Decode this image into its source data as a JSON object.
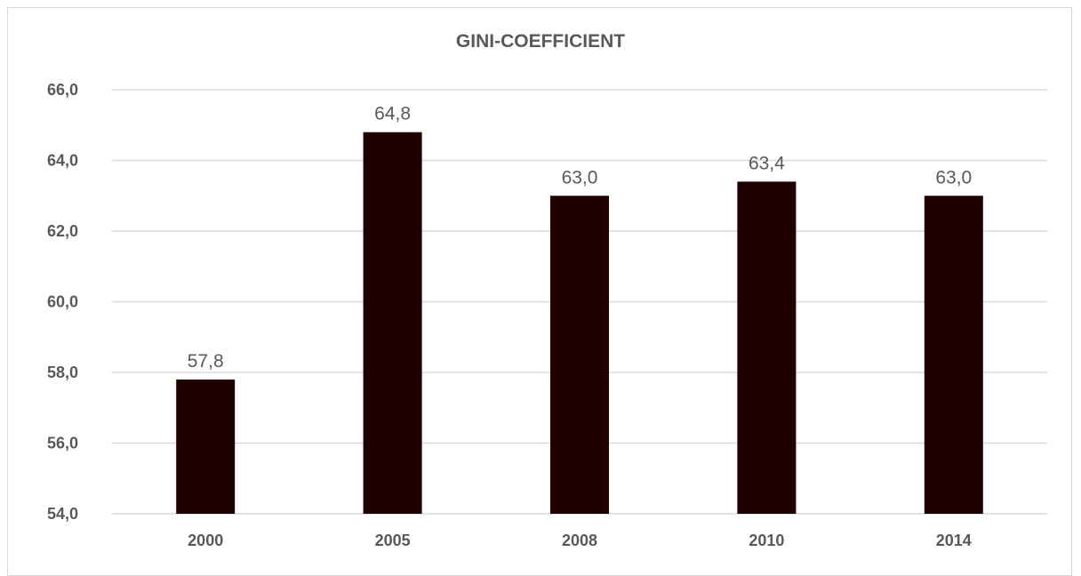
{
  "chart_data": {
    "type": "bar",
    "title": "GINI-COEFFICIENT",
    "categories": [
      "2000",
      "2005",
      "2008",
      "2010",
      "2014"
    ],
    "values": [
      57.8,
      64.8,
      63.0,
      63.4,
      63.0
    ],
    "value_labels": [
      "57,8",
      "64,8",
      "63,0",
      "63,4",
      "63,0"
    ],
    "ylim": [
      54,
      66
    ],
    "yticks": [
      54,
      56,
      58,
      60,
      62,
      64,
      66
    ],
    "ytick_labels": [
      "54,0",
      "56,0",
      "58,0",
      "60,0",
      "62,0",
      "64,0",
      "66,0"
    ],
    "xlabel": "",
    "ylabel": "",
    "grid": true,
    "bar_color": "#1f0000",
    "grid_color": "#d9d9d9"
  }
}
